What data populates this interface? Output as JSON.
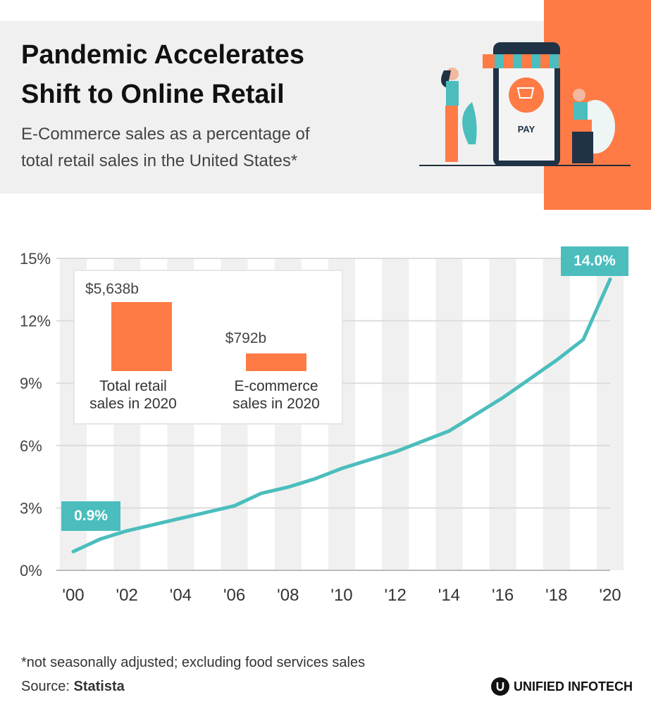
{
  "header": {
    "title_line1": "Pandemic Accelerates",
    "title_line2": "Shift to Online Retail",
    "subtitle_line1": "E-Commerce sales as a percentage of",
    "subtitle_line2": "total retail sales in the United States*",
    "illustration_text": "PAY"
  },
  "colors": {
    "accent": "#ff7b45",
    "line": "#4bbdbd",
    "header_bg": "#f0f0f0"
  },
  "inset": {
    "bars": [
      {
        "value_label": "$5,638b",
        "value": 5638,
        "label_line1": "Total retail",
        "label_line2": "sales in 2020"
      },
      {
        "value_label": "$792b",
        "value": 792,
        "label_line1": "E-commerce",
        "label_line2": "sales in 2020"
      }
    ]
  },
  "chart_data": {
    "type": "line",
    "x": [
      2000,
      2001,
      2002,
      2003,
      2004,
      2005,
      2006,
      2007,
      2008,
      2009,
      2010,
      2011,
      2012,
      2013,
      2014,
      2015,
      2016,
      2017,
      2018,
      2019,
      2020
    ],
    "x_tick_labels": [
      "'00",
      "'02",
      "'04",
      "'06",
      "'08",
      "'10",
      "'12",
      "'14",
      "'16",
      "'18",
      "'20"
    ],
    "x_ticks": [
      2000,
      2002,
      2004,
      2006,
      2008,
      2010,
      2012,
      2014,
      2016,
      2018,
      2020
    ],
    "y_tick_labels": [
      "0%",
      "3%",
      "6%",
      "9%",
      "12%",
      "15%"
    ],
    "y_ticks": [
      0,
      3,
      6,
      9,
      12,
      15
    ],
    "ylim": [
      0,
      15
    ],
    "series": [
      {
        "values": [
          0.9,
          1.5,
          1.9,
          2.2,
          2.5,
          2.8,
          3.1,
          3.7,
          4.0,
          4.4,
          4.9,
          5.3,
          5.7,
          6.2,
          6.7,
          7.5,
          8.3,
          9.2,
          10.1,
          11.1,
          14.0
        ]
      }
    ],
    "annotations": [
      {
        "x": 2000,
        "text": "0.9%"
      },
      {
        "x": 2020,
        "text": "14.0%"
      }
    ],
    "grid": true
  },
  "footer": {
    "note": "*not seasonally adjusted; excluding food services sales",
    "source_prefix": "Source: ",
    "source_name": "Statista",
    "logo_text": "UNIFIED INFOTECH"
  }
}
